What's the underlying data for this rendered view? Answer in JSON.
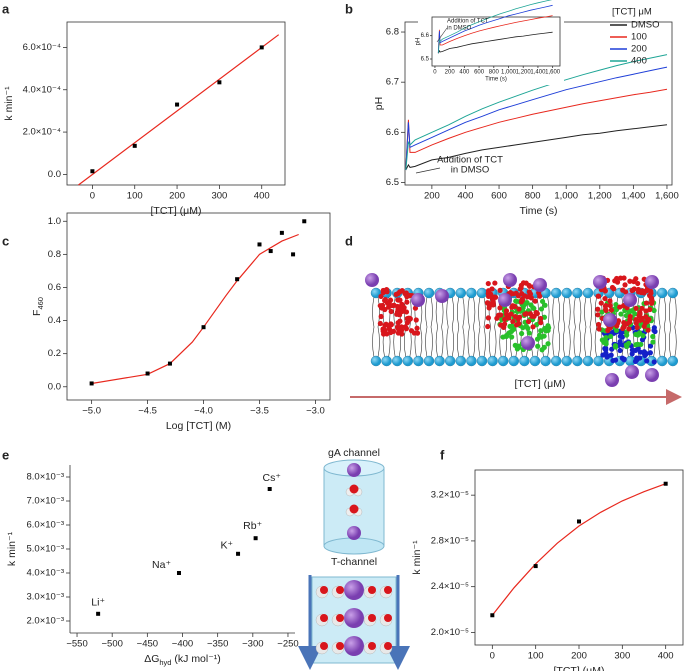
{
  "chart_data": [
    {
      "type": "scatter",
      "label": "a",
      "xlabel": [
        "[TCT] (μM)"
      ],
      "ylabel": [
        "k min⁻¹"
      ],
      "x": [
        0,
        100,
        200,
        300,
        400
      ],
      "values": [
        1.5e-05,
        0.000135,
        0.00033,
        0.000435,
        0.0006
      ],
      "color": "#000000",
      "fit": {
        "x": [
          -33,
          440
        ],
        "values": [
          -5e-05,
          0.00066
        ],
        "color": "#e8281e"
      },
      "xlim": [
        -60,
        455
      ],
      "ylim": [
        -5e-05,
        0.00072
      ],
      "xticks": [
        0,
        100,
        200,
        300,
        400
      ],
      "yticks": [
        {
          "value": 0,
          "label": "0.0"
        },
        {
          "value": 0.0002,
          "label": "2.0×10⁻⁴"
        },
        {
          "value": 0.0004,
          "label": "4.0×10⁻⁴"
        },
        {
          "value": 0.0006,
          "label": "6.0×10⁻⁴"
        }
      ]
    },
    {
      "type": "line",
      "label": "b",
      "xlabel": [
        "Time (s)"
      ],
      "ylabel": [
        "pH"
      ],
      "x": [
        45,
        60,
        70,
        100,
        200,
        300,
        400,
        500,
        600,
        700,
        800,
        900,
        1000,
        1100,
        1200,
        1300,
        1400,
        1500,
        1600
      ],
      "legend_title": "[TCT] μM",
      "series": [
        {
          "name": "DMSO",
          "color": "#222222",
          "values": [
            6.525,
            6.535,
            6.53,
            6.532,
            6.545,
            6.55,
            6.558,
            6.565,
            6.57,
            6.575,
            6.58,
            6.585,
            6.59,
            6.595,
            6.598,
            6.603,
            6.607,
            6.611,
            6.615
          ]
        },
        {
          "name": "100",
          "color": "#e8281e",
          "values": [
            6.525,
            6.625,
            6.56,
            6.56,
            6.575,
            6.588,
            6.6,
            6.61,
            6.62,
            6.628,
            6.636,
            6.643,
            6.65,
            6.657,
            6.663,
            6.669,
            6.675,
            6.68,
            6.686
          ]
        },
        {
          "name": "200",
          "color": "#1f3fd8",
          "values": [
            6.525,
            6.62,
            6.57,
            6.575,
            6.59,
            6.605,
            6.62,
            6.632,
            6.645,
            6.655,
            6.665,
            6.675,
            6.685,
            6.693,
            6.701,
            6.709,
            6.716,
            6.723,
            6.73
          ]
        },
        {
          "name": "400",
          "color": "#1ea596",
          "values": [
            6.525,
            6.58,
            6.575,
            6.585,
            6.6,
            6.615,
            6.632,
            6.647,
            6.66,
            6.672,
            6.684,
            6.695,
            6.705,
            6.715,
            6.724,
            6.733,
            6.741,
            6.748,
            6.755
          ]
        }
      ],
      "annotation": [
        "Addition of TCT",
        "in DMSO"
      ],
      "xlim": [
        40,
        1630
      ],
      "ylim": [
        6.495,
        6.82
      ],
      "xticks": [
        200,
        400,
        600,
        800,
        {
          "value": 1000,
          "label": "1,000"
        },
        {
          "value": 1200,
          "label": "1,200"
        },
        {
          "value": 1400,
          "label": "1,400"
        },
        {
          "value": 1600,
          "label": "1,600"
        }
      ],
      "yticks": [
        6.5,
        6.6,
        6.7,
        6.8
      ],
      "inset": {
        "xlabel": "Time (s)",
        "ylabel": "pH",
        "annotation": [
          "Addition of TCT",
          "in DMSO"
        ],
        "xlim": [
          -40,
          1700
        ],
        "ylim": [
          6.47,
          6.68
        ],
        "xticks": [
          0,
          200,
          400,
          600,
          800,
          {
            "value": 1000,
            "label": "1,000"
          },
          {
            "value": 1200,
            "label": "1,200"
          },
          {
            "value": 1400,
            "label": "1,400"
          },
          {
            "value": 1600,
            "label": "1,600"
          }
        ],
        "yticks": [
          6.5,
          6.6
        ]
      }
    },
    {
      "type": "scatter",
      "label": "c",
      "xlabel": [
        "Log [TCT] (M)"
      ],
      "ylabel": [
        "F",
        "460"
      ],
      "x": [
        -5.0,
        -4.5,
        -4.3,
        -4.0,
        -3.7,
        -3.5,
        -3.4,
        -3.3,
        -3.2,
        -3.1
      ],
      "values": [
        0.02,
        0.08,
        0.14,
        0.36,
        0.65,
        0.86,
        0.82,
        0.93,
        0.8,
        1.0
      ],
      "color": "#000000",
      "fit": {
        "x": [
          -5.0,
          -4.5,
          -4.3,
          -4.1,
          -4.0,
          -3.8,
          -3.7,
          -3.5,
          -3.3,
          -3.15
        ],
        "values": [
          0.02,
          0.075,
          0.14,
          0.27,
          0.36,
          0.55,
          0.64,
          0.8,
          0.88,
          0.92
        ],
        "color": "#e8281e"
      },
      "xlim": [
        -5.22,
        -2.87
      ],
      "ylim": [
        -0.08,
        1.05
      ],
      "xticks": [
        {
          "value": -5.0,
          "label": "−5.0"
        },
        {
          "value": -4.5,
          "label": "−4.5"
        },
        {
          "value": -4.0,
          "label": "−4.0"
        },
        {
          "value": -3.5,
          "label": "−3.5"
        },
        {
          "value": -3.0,
          "label": "−3.0"
        }
      ],
      "yticks": [
        {
          "value": 0,
          "label": "0.0"
        },
        {
          "value": 0.2,
          "label": "0.2"
        },
        {
          "value": 0.4,
          "label": "0.4"
        },
        {
          "value": 0.6,
          "label": "0.6"
        },
        {
          "value": 0.8,
          "label": "0.8"
        },
        {
          "value": 1,
          "label": "1.0"
        }
      ]
    },
    {
      "type": "scatter",
      "label": "e",
      "xlabel": [
        "ΔG",
        "hyd",
        " (kJ mol⁻¹)"
      ],
      "ylabel": [
        "k min⁻¹"
      ],
      "labels": [
        "Li⁺",
        "Na⁺",
        "K⁺",
        "Rb⁺",
        "Cs⁺"
      ],
      "x": [
        -520,
        -405,
        -321,
        -296,
        -276
      ],
      "values": [
        0.0023,
        0.004,
        0.0048,
        0.00545,
        0.0075
      ],
      "color": "#000000",
      "xlim": [
        -560,
        -240
      ],
      "ylim": [
        0.0015,
        0.0085
      ],
      "xticks": [
        {
          "value": -550,
          "label": "−550"
        },
        {
          "value": -500,
          "label": "−500"
        },
        {
          "value": -450,
          "label": "−450"
        },
        {
          "value": -400,
          "label": "−400"
        },
        {
          "value": -350,
          "label": "−350"
        },
        {
          "value": -300,
          "label": "−300"
        },
        {
          "value": -250,
          "label": "−250"
        }
      ],
      "yticks": [
        {
          "value": 0.002,
          "label": "2.0×10⁻³"
        },
        {
          "value": 0.003,
          "label": "3.0×10⁻³"
        },
        {
          "value": 0.004,
          "label": "4.0×10⁻³"
        },
        {
          "value": 0.005,
          "label": "5.0×10⁻³"
        },
        {
          "value": 0.006,
          "label": "6.0×10⁻³"
        },
        {
          "value": 0.007,
          "label": "7.0×10⁻³"
        },
        {
          "value": 0.008,
          "label": "8.0×10⁻³"
        }
      ]
    },
    {
      "type": "scatter",
      "label": "f",
      "xlabel": [
        "[TCT] (μM)"
      ],
      "ylabel": [
        "k min⁻¹"
      ],
      "x": [
        0,
        100,
        200,
        400
      ],
      "values": [
        2.15e-05,
        2.58e-05,
        2.97e-05,
        3.3e-05
      ],
      "color": "#000000",
      "fit": {
        "x": [
          0,
          50,
          100,
          150,
          200,
          250,
          300,
          350,
          400
        ],
        "values": [
          2.15e-05,
          2.39e-05,
          2.6e-05,
          2.78e-05,
          2.93e-05,
          3.05e-05,
          3.15e-05,
          3.23e-05,
          3.3e-05
        ],
        "color": "#e8281e"
      },
      "xlim": [
        -40,
        440
      ],
      "ylim": [
        1.89e-05,
        3.42e-05
      ],
      "xticks": [
        0,
        100,
        200,
        300,
        400
      ],
      "yticks": [
        {
          "value": 2e-05,
          "label": "2.0×10⁻⁵"
        },
        {
          "value": 2.4e-05,
          "label": "2.4×10⁻⁵"
        },
        {
          "value": 2.8e-05,
          "label": "2.8×10⁻⁵"
        },
        {
          "value": 3.2e-05,
          "label": "3.2×10⁻⁵"
        }
      ]
    }
  ],
  "diagram": {
    "label": "d",
    "axis_label": "[TCT] (μM)"
  },
  "schematic": {
    "top_label": "gA channel",
    "bottom_label": "T-channel"
  }
}
